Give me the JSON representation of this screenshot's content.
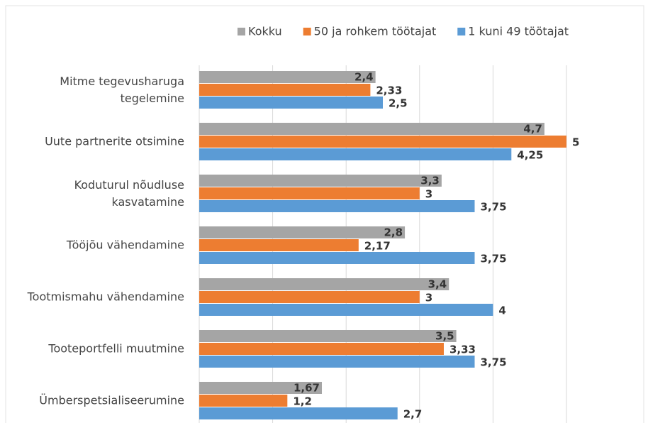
{
  "chart_data": {
    "type": "hbar",
    "categories": [
      "Mitme tegevusharuga tegelemine",
      "Uute partnerite otsimine",
      "Koduturul nõudluse kasvatamine",
      "Tööjõu vähendamine",
      "Tootmismahu vähendamine",
      "Tooteportfelli muutmine",
      "Ümberspetsialiseerumine"
    ],
    "series": [
      {
        "name": "Kokku",
        "color": "#a5a5a5",
        "values": [
          2.4,
          4.7,
          3.3,
          2.8,
          3.4,
          3.5,
          1.67
        ],
        "value_labels": [
          "2,4",
          "4,7",
          "3,3",
          "2,8",
          "3,4",
          "3,5",
          "1,67"
        ]
      },
      {
        "name": "50 ja rohkem töötajat",
        "color": "#ed7d31",
        "values": [
          2.33,
          5,
          3,
          2.17,
          3,
          3.33,
          1.2
        ],
        "value_labels": [
          "2,33",
          "5",
          "3",
          "2,17",
          "3",
          "3,33",
          "1,2"
        ]
      },
      {
        "name": "1 kuni 49 töötajat",
        "color": "#5b9bd5",
        "values": [
          2.5,
          4.25,
          3.75,
          3.75,
          4,
          3.75,
          2.7
        ],
        "value_labels": [
          "2,5",
          "4,25",
          "3,75",
          "3,75",
          "4",
          "3,75",
          "2,7"
        ]
      }
    ],
    "xlim": [
      0,
      5
    ],
    "xticks": [
      0,
      1,
      2,
      3,
      4,
      5
    ],
    "grid": true,
    "legend": "top"
  }
}
